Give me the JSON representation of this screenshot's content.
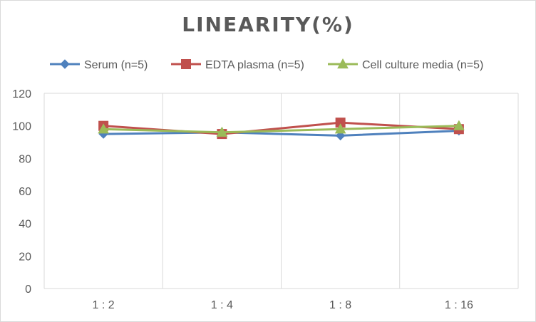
{
  "chart_data": {
    "type": "line",
    "title": "LINEARITY(%)",
    "xlabel": "",
    "ylabel": "",
    "categories": [
      "1:2",
      "1:4",
      "1:8",
      "1:16"
    ],
    "ylim": [
      0,
      120
    ],
    "yticks": [
      0,
      20,
      40,
      60,
      80,
      100,
      120
    ],
    "grid": "vertical",
    "legend": "top",
    "series": [
      {
        "name": "Serum (n=5)",
        "values": [
          95,
          96,
          94,
          97
        ],
        "color": "#4f81bd",
        "marker": "diamond"
      },
      {
        "name": "EDTA plasma (n=5)",
        "values": [
          100,
          95,
          102,
          98
        ],
        "color": "#c0504d",
        "marker": "square"
      },
      {
        "name": "Cell culture media (n=5)",
        "values": [
          98,
          96,
          98,
          100
        ],
        "color": "#9bbb59",
        "marker": "triangle"
      }
    ]
  }
}
